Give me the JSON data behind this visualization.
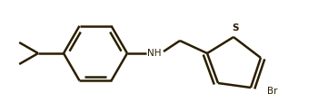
{
  "bg_color": "#ffffff",
  "bond_color": "#2a1f00",
  "text_color": "#2a1f00",
  "line_width": 1.8,
  "figsize": [
    3.5,
    1.24
  ],
  "dpi": 100,
  "NH_label": "NH",
  "Br_label": "Br",
  "S_label": "S",
  "NH_fontsize": 7.5,
  "Br_fontsize": 7.5,
  "S_fontsize": 7.5
}
